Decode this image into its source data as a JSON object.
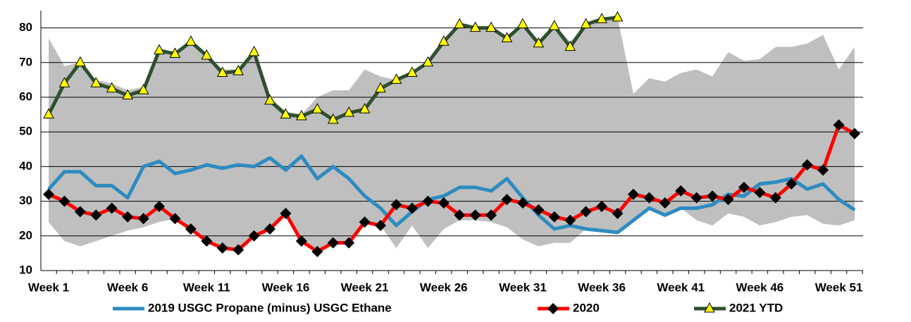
{
  "chart_data": {
    "type": "line",
    "categories": [
      "Week 1",
      null,
      null,
      null,
      null,
      "Week 6",
      null,
      null,
      null,
      null,
      "Week 11",
      null,
      null,
      null,
      null,
      "Week 16",
      null,
      null,
      null,
      null,
      "Week 21",
      null,
      null,
      null,
      null,
      "Week 26",
      null,
      null,
      null,
      null,
      "Week 31",
      null,
      null,
      null,
      null,
      "Week 36",
      null,
      null,
      null,
      null,
      "Week 41",
      null,
      null,
      null,
      null,
      "Week 46",
      null,
      null,
      null,
      null,
      "Week 51",
      null
    ],
    "ylim": [
      10,
      85
    ],
    "yticks": [
      10,
      20,
      30,
      40,
      50,
      60,
      70,
      80
    ],
    "grid": true,
    "legend": "bottom",
    "band": {
      "color": "#bfbfbf",
      "upper": [
        77,
        69,
        70,
        65,
        64,
        62,
        63,
        74,
        73,
        76,
        72,
        68,
        68,
        74,
        60,
        56,
        55,
        60,
        62,
        62,
        68,
        66,
        65,
        67,
        70,
        76,
        81,
        80,
        80,
        77,
        81,
        76,
        81,
        76,
        81,
        82.5,
        83,
        61,
        65.5,
        64.5,
        67,
        68,
        66,
        73,
        70.5,
        71,
        74.5,
        74.5,
        75.5,
        78,
        68,
        74.5
      ],
      "lower": [
        24,
        18.5,
        17,
        18.5,
        20,
        21.5,
        22.5,
        24,
        25,
        22,
        18.5,
        16.5,
        16,
        20,
        22,
        26.5,
        18.5,
        15.5,
        18,
        18,
        24,
        23,
        16.5,
        23,
        16.5,
        22,
        24.5,
        24.5,
        24,
        22.5,
        19,
        17,
        18,
        18,
        22,
        21.5,
        21,
        24.5,
        28,
        26,
        28,
        24.5,
        23,
        26.5,
        25.5,
        23,
        24,
        25.5,
        26,
        23.5,
        23,
        24.5
      ]
    },
    "series": [
      {
        "name": "2019 USGC Propane (minus) USGC Ethane",
        "color": "#2e8bc0",
        "marker": "none",
        "values": [
          33.5,
          38.5,
          38.5,
          34.5,
          34.5,
          31,
          40,
          41.5,
          38,
          39,
          40.5,
          39.5,
          40.5,
          40,
          42.5,
          39,
          43,
          36.5,
          40,
          36.5,
          31.5,
          28,
          23,
          27,
          30.5,
          31.5,
          34,
          34,
          33,
          36.5,
          31,
          26,
          22,
          23,
          22,
          21.5,
          21,
          24.5,
          28,
          26,
          28,
          28,
          29,
          32,
          31.5,
          35,
          35.5,
          36.5,
          33.5,
          35,
          30.5,
          27.5
        ]
      },
      {
        "name": "2020",
        "color": "#ff0000",
        "marker": "diamond",
        "values": [
          32,
          30,
          27,
          26,
          28,
          25.5,
          25,
          28.5,
          25,
          22,
          18.5,
          16.5,
          16,
          20,
          22,
          26.5,
          18.5,
          15.5,
          18,
          18,
          24,
          23,
          29,
          28,
          30,
          29.5,
          26,
          26,
          26,
          30.5,
          29.5,
          27.5,
          25.5,
          24.5,
          27,
          28.5,
          26.5,
          32,
          31,
          29.5,
          33,
          31,
          31.5,
          30.5,
          34,
          32.5,
          31,
          35,
          40.5,
          39,
          52,
          49.5
        ]
      },
      {
        "name": "2021 YTD",
        "color": "#2f4f2f",
        "marker": "triangle",
        "values": [
          55,
          64,
          70,
          64,
          62.5,
          60.5,
          62,
          73.5,
          72.5,
          76,
          72,
          67,
          67.5,
          73,
          59,
          55,
          54.5,
          56.5,
          53.5,
          55.5,
          56.5,
          62.5,
          65,
          67,
          70,
          76,
          81,
          80,
          80,
          77,
          81,
          75.5,
          80.5,
          74.5,
          81,
          82.5,
          83,
          null,
          null,
          null,
          null,
          null,
          null,
          null,
          null,
          null,
          null,
          null,
          null,
          null,
          null,
          null
        ]
      }
    ]
  }
}
